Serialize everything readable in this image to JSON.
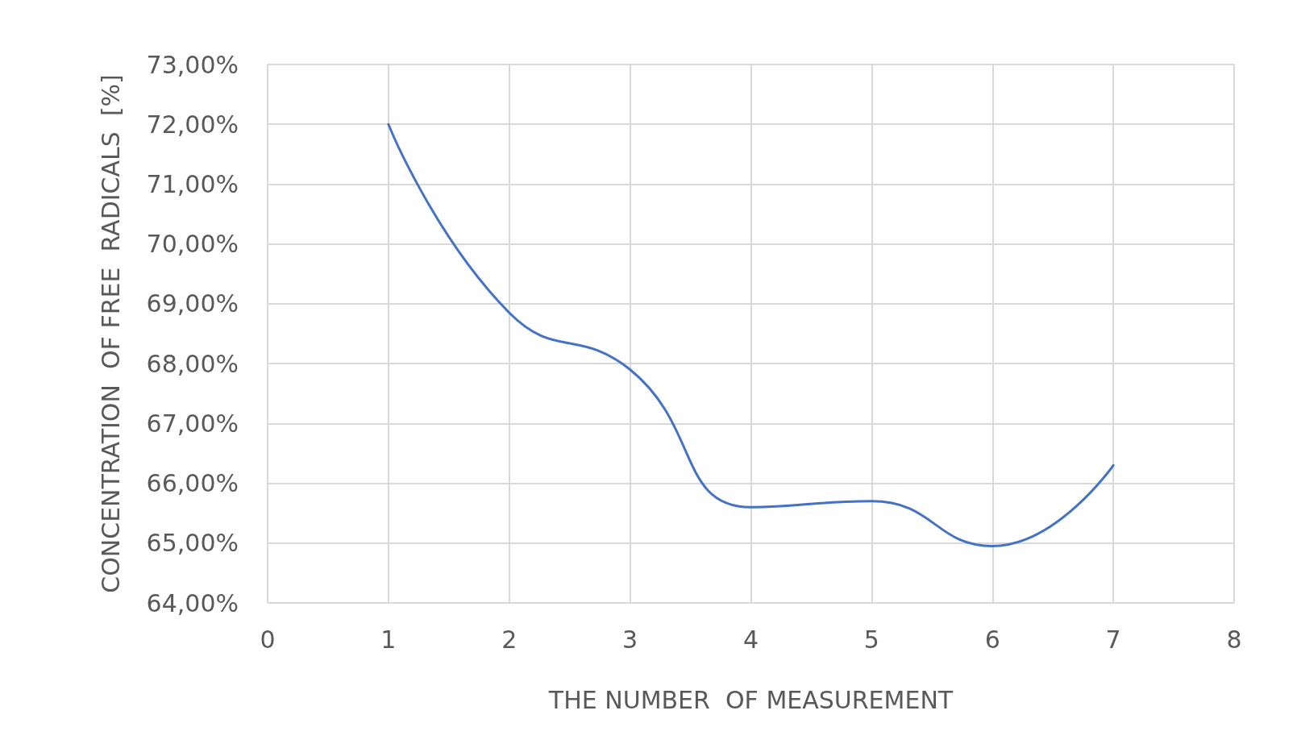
{
  "chart_data": {
    "type": "line",
    "xlabel": "THE NUMBER  OF MEASUREMENT",
    "ylabel": "CONCENTRATION  OF FREE  RADICALS  [%]",
    "x": [
      1,
      2,
      3,
      4,
      5,
      6,
      7
    ],
    "series": [
      {
        "color": "#4472c4",
        "values": [
          72.0,
          68.85,
          67.9,
          65.6,
          65.7,
          64.95,
          66.3
        ]
      }
    ],
    "xlim": [
      0,
      8
    ],
    "xticks": [
      0,
      1,
      2,
      3,
      4,
      5,
      6,
      7,
      8
    ],
    "ylim": [
      64,
      73
    ],
    "yticks": [
      {
        "value": 64,
        "label": "64,00%"
      },
      {
        "value": 65,
        "label": "65,00%"
      },
      {
        "value": 66,
        "label": "66,00%"
      },
      {
        "value": 67,
        "label": "67,00%"
      },
      {
        "value": 68,
        "label": "68,00%"
      },
      {
        "value": 69,
        "label": "69,00%"
      },
      {
        "value": 70,
        "label": "70,00%"
      },
      {
        "value": 71,
        "label": "71,00%"
      },
      {
        "value": 72,
        "label": "72,00%"
      },
      {
        "value": 73,
        "label": "73,00%"
      }
    ],
    "grid": true,
    "marker": "none",
    "line_style": "solid"
  }
}
